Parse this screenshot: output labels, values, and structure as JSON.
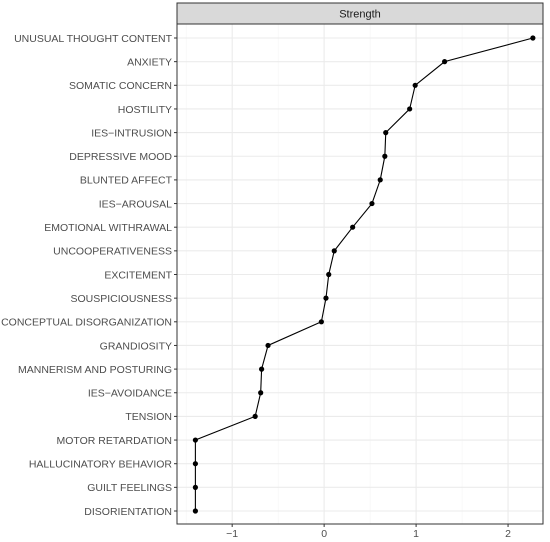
{
  "chart_data": {
    "type": "line",
    "panel_title": "Strength",
    "categories": [
      "UNUSUAL THOUGHT CONTENT",
      "ANXIETY",
      "SOMATIC CONCERN",
      "HOSTILITY",
      "IES−INTRUSION",
      "DEPRESSIVE MOOD",
      "BLUNTED AFFECT",
      "IES−AROUSAL",
      "EMOTIONAL WITHRAWAL",
      "UNCOOPERATIVENESS",
      "EXCITEMENT",
      "SOUSPICIOUSNESS",
      "CONCEPTUAL DISORGANIZATION",
      "GRANDIOSITY",
      "MANNERISM AND POSTURING",
      "IES−AVOIDANCE",
      "TENSION",
      "MOTOR RETARDATION",
      "HALLUCINATORY BEHAVIOR",
      "GUILT FEELINGS",
      "DISORIENTATION"
    ],
    "values": [
      2.27,
      1.31,
      0.99,
      0.93,
      0.67,
      0.66,
      0.61,
      0.52,
      0.31,
      0.11,
      0.05,
      0.02,
      -0.03,
      -0.61,
      -0.68,
      -0.69,
      -0.75,
      -1.4,
      -1.4,
      -1.4,
      -1.4
    ],
    "xlim": [
      -1.6,
      2.38
    ],
    "x_ticks": [
      -1,
      0,
      1,
      2
    ],
    "x_tick_labels": [
      "−1",
      "0",
      "1",
      "2"
    ],
    "grid": true,
    "colors": {
      "line": "#000000",
      "strip_fill": "#d9d9d9",
      "grid_major": "#ebebeb",
      "grid_minor": "#f5f5f5",
      "label": "#4d4d4d"
    }
  }
}
